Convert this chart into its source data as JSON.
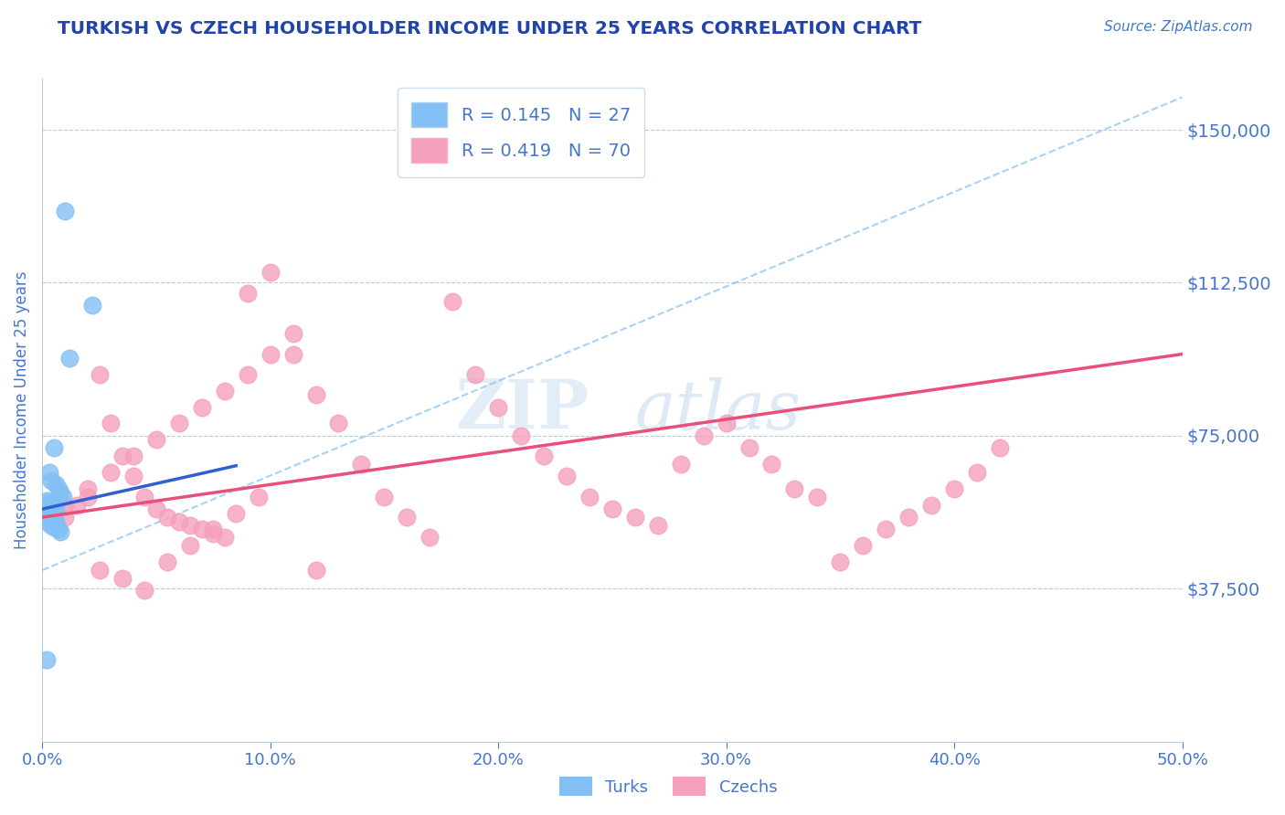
{
  "title": "TURKISH VS CZECH HOUSEHOLDER INCOME UNDER 25 YEARS CORRELATION CHART",
  "source_text": "Source: ZipAtlas.com",
  "ylabel": "Householder Income Under 25 years",
  "watermark": "ZIPatlas",
  "xlim": [
    0.0,
    0.5
  ],
  "ylim": [
    0,
    162500
  ],
  "xticks": [
    0.0,
    0.1,
    0.2,
    0.3,
    0.4,
    0.5
  ],
  "xticklabels": [
    "0.0%",
    "10.0%",
    "20.0%",
    "30.0%",
    "40.0%",
    "50.0%"
  ],
  "yticks": [
    0,
    37500,
    75000,
    112500,
    150000
  ],
  "yticklabels": [
    "",
    "$37,500",
    "$75,000",
    "$112,500",
    "$150,000"
  ],
  "turks_R": 0.145,
  "turks_N": 27,
  "czechs_R": 0.419,
  "czechs_N": 70,
  "turk_color": "#82C0F5",
  "czech_color": "#F5A0BC",
  "turk_line_color": "#3060D0",
  "czech_line_color": "#E8507A",
  "dashed_line_color": "#82C0F5",
  "grid_color": "#BBCCDD",
  "title_color": "#2244AA",
  "axis_color": "#4477CC",
  "background_color": "#FFFFFF",
  "turks_x": [
    0.01,
    0.022,
    0.012,
    0.005,
    0.003,
    0.004,
    0.006,
    0.007,
    0.008,
    0.009,
    0.002,
    0.003,
    0.004,
    0.005,
    0.006,
    0.001,
    0.002,
    0.003,
    0.004,
    0.005,
    0.006,
    0.003,
    0.004,
    0.005,
    0.007,
    0.008,
    0.002
  ],
  "turks_y": [
    130000,
    107000,
    94000,
    72000,
    66000,
    64000,
    63000,
    62000,
    61000,
    60000,
    59000,
    58500,
    58000,
    57500,
    57000,
    56500,
    56000,
    55500,
    55000,
    54500,
    54000,
    53500,
    53000,
    52500,
    52000,
    51500,
    20000
  ],
  "czechs_x": [
    0.005,
    0.01,
    0.015,
    0.02,
    0.025,
    0.03,
    0.035,
    0.04,
    0.045,
    0.05,
    0.055,
    0.06,
    0.065,
    0.07,
    0.075,
    0.08,
    0.09,
    0.1,
    0.11,
    0.12,
    0.13,
    0.14,
    0.15,
    0.16,
    0.17,
    0.18,
    0.19,
    0.2,
    0.21,
    0.22,
    0.23,
    0.24,
    0.25,
    0.26,
    0.27,
    0.28,
    0.29,
    0.3,
    0.31,
    0.32,
    0.33,
    0.34,
    0.35,
    0.36,
    0.37,
    0.38,
    0.39,
    0.4,
    0.41,
    0.42,
    0.025,
    0.035,
    0.045,
    0.055,
    0.065,
    0.075,
    0.085,
    0.095,
    0.01,
    0.02,
    0.03,
    0.04,
    0.05,
    0.06,
    0.07,
    0.08,
    0.09,
    0.1,
    0.11,
    0.12
  ],
  "czechs_y": [
    57000,
    55000,
    58000,
    60000,
    90000,
    78000,
    70000,
    65000,
    60000,
    57000,
    55000,
    54000,
    53000,
    52000,
    51000,
    50000,
    110000,
    115000,
    95000,
    85000,
    78000,
    68000,
    60000,
    55000,
    50000,
    108000,
    90000,
    82000,
    75000,
    70000,
    65000,
    60000,
    57000,
    55000,
    53000,
    68000,
    75000,
    78000,
    72000,
    68000,
    62000,
    60000,
    44000,
    48000,
    52000,
    55000,
    58000,
    62000,
    66000,
    72000,
    42000,
    40000,
    37000,
    44000,
    48000,
    52000,
    56000,
    60000,
    58000,
    62000,
    66000,
    70000,
    74000,
    78000,
    82000,
    86000,
    90000,
    95000,
    100000,
    42000
  ],
  "dashed_line_x0": 0.0,
  "dashed_line_y0": 42000,
  "dashed_line_x1": 0.5,
  "dashed_line_y1": 158000
}
